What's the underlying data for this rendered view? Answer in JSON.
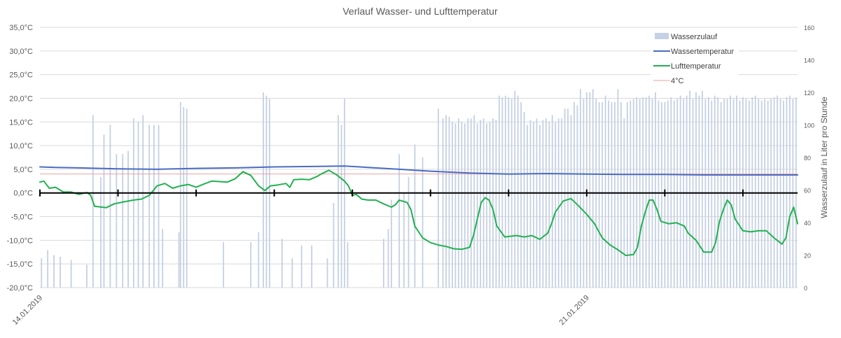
{
  "chart_data": {
    "type": "bar+line",
    "title": "Verlauf Wasser- und Lufttemperatur",
    "y_left": {
      "range": [
        -20,
        35
      ],
      "ticks": [
        -20,
        -15,
        -10,
        -5,
        0,
        5,
        10,
        15,
        20,
        25,
        30,
        35
      ],
      "tick_labels": [
        "-20,0°C",
        "-15,0°C",
        "-10,0°C",
        "-5,0°C",
        "0,0°C",
        "5,0°C",
        "10,0°C",
        "15,0°C",
        "20,0°C",
        "25,0°C",
        "30,0°C",
        "35,0°C"
      ]
    },
    "y_right": {
      "label": "Wasserzulauf in Liter pro Stunde",
      "range": [
        0,
        160
      ],
      "ticks": [
        0,
        20,
        40,
        60,
        80,
        100,
        120,
        140,
        160
      ],
      "tick_labels": [
        "0",
        "20",
        "40",
        "60",
        "80",
        "100",
        "120",
        "140",
        "160"
      ]
    },
    "x_axis": {
      "range_days": [
        0,
        9.7
      ],
      "tick_step_days": 1,
      "date_labels": [
        {
          "day": 0,
          "label": "14.01.2019"
        },
        {
          "day": 7,
          "label": "21.01.2019"
        }
      ]
    },
    "grid": true,
    "legend_position": "top-right",
    "legend": [
      {
        "key": "bars",
        "label": "Wasserzulauf",
        "color": "#c5d0e3"
      },
      {
        "key": "water",
        "label": "Wassertemperatur",
        "color": "#4a6cc2"
      },
      {
        "key": "air",
        "label": "Lufttemperatur",
        "color": "#21b14f"
      },
      {
        "key": "ref",
        "label": "4°C",
        "color": "#e8a3a0"
      }
    ],
    "series": {
      "bars": {
        "name": "Wasserzulauf",
        "axis": "right",
        "points": [
          [
            0.02,
            18
          ],
          [
            0.1,
            23
          ],
          [
            0.18,
            20
          ],
          [
            0.26,
            19
          ],
          [
            0.4,
            17
          ],
          [
            0.6,
            14
          ],
          [
            0.68,
            106
          ],
          [
            0.78,
            68
          ],
          [
            0.82,
            94
          ],
          [
            0.9,
            100
          ],
          [
            0.98,
            82
          ],
          [
            1.06,
            82
          ],
          [
            1.13,
            84
          ],
          [
            1.2,
            104
          ],
          [
            1.26,
            102
          ],
          [
            1.32,
            106
          ],
          [
            1.4,
            100
          ],
          [
            1.46,
            100
          ],
          [
            1.52,
            100
          ],
          [
            1.57,
            36
          ],
          [
            1.78,
            34
          ],
          [
            1.8,
            114
          ],
          [
            1.84,
            111
          ],
          [
            1.88,
            110
          ],
          [
            2.35,
            28
          ],
          [
            2.7,
            28
          ],
          [
            2.8,
            34
          ],
          [
            2.86,
            120
          ],
          [
            2.9,
            118
          ],
          [
            2.94,
            116
          ],
          [
            3.1,
            30
          ],
          [
            3.23,
            18
          ],
          [
            3.35,
            26
          ],
          [
            3.48,
            26
          ],
          [
            3.68,
            18
          ],
          [
            3.76,
            52
          ],
          [
            3.82,
            106
          ],
          [
            3.86,
            100
          ],
          [
            3.9,
            116
          ],
          [
            3.94,
            28
          ],
          [
            4.4,
            30
          ],
          [
            4.46,
            36
          ],
          [
            4.5,
            54
          ],
          [
            4.6,
            82
          ],
          [
            4.66,
            58
          ],
          [
            4.72,
            68
          ],
          [
            4.8,
            88
          ],
          [
            4.9,
            80
          ],
          [
            5.1,
            110
          ],
          [
            5.16,
            104
          ],
          [
            5.2,
            106
          ],
          [
            5.24,
            105
          ],
          [
            5.28,
            102
          ],
          [
            5.32,
            101
          ],
          [
            5.36,
            104
          ],
          [
            5.4,
            102
          ],
          [
            5.44,
            101
          ],
          [
            5.48,
            104
          ],
          [
            5.52,
            104
          ],
          [
            5.56,
            106
          ],
          [
            5.6,
            101
          ],
          [
            5.64,
            103
          ],
          [
            5.68,
            104
          ],
          [
            5.72,
            101
          ],
          [
            5.76,
            102
          ],
          [
            5.8,
            104
          ],
          [
            5.84,
            103
          ],
          [
            5.88,
            118
          ],
          [
            5.92,
            117
          ],
          [
            5.96,
            118
          ],
          [
            6.0,
            117
          ],
          [
            6.04,
            116
          ],
          [
            6.08,
            121
          ],
          [
            6.12,
            118
          ],
          [
            6.16,
            114
          ],
          [
            6.2,
            108
          ],
          [
            6.24,
            100
          ],
          [
            6.28,
            103
          ],
          [
            6.32,
            102
          ],
          [
            6.36,
            104
          ],
          [
            6.4,
            100
          ],
          [
            6.44,
            103
          ],
          [
            6.48,
            104
          ],
          [
            6.52,
            102
          ],
          [
            6.56,
            106
          ],
          [
            6.6,
            102
          ],
          [
            6.64,
            104
          ],
          [
            6.68,
            104
          ],
          [
            6.72,
            110
          ],
          [
            6.76,
            110
          ],
          [
            6.8,
            106
          ],
          [
            6.84,
            114
          ],
          [
            6.88,
            112
          ],
          [
            6.92,
            122
          ],
          [
            6.96,
            116
          ],
          [
            7.0,
            120
          ],
          [
            7.04,
            120
          ],
          [
            7.08,
            122
          ],
          [
            7.12,
            116
          ],
          [
            7.16,
            114
          ],
          [
            7.2,
            114
          ],
          [
            7.24,
            118
          ],
          [
            7.28,
            115
          ],
          [
            7.32,
            114
          ],
          [
            7.36,
            114
          ],
          [
            7.4,
            122
          ],
          [
            7.44,
            114
          ],
          [
            7.48,
            104
          ],
          [
            7.52,
            114
          ],
          [
            7.56,
            115
          ],
          [
            7.6,
            116
          ],
          [
            7.64,
            117
          ],
          [
            7.68,
            116
          ],
          [
            7.72,
            117
          ],
          [
            7.76,
            117
          ],
          [
            7.8,
            118
          ],
          [
            7.84,
            116
          ],
          [
            7.88,
            120
          ],
          [
            7.92,
            115
          ],
          [
            7.96,
            114
          ],
          [
            8.0,
            114
          ],
          [
            8.04,
            115
          ],
          [
            8.08,
            117
          ],
          [
            8.12,
            115
          ],
          [
            8.16,
            116
          ],
          [
            8.2,
            118
          ],
          [
            8.24,
            116
          ],
          [
            8.28,
            118
          ],
          [
            8.32,
            121
          ],
          [
            8.36,
            116
          ],
          [
            8.4,
            120
          ],
          [
            8.44,
            118
          ],
          [
            8.48,
            121
          ],
          [
            8.52,
            116
          ],
          [
            8.56,
            117
          ],
          [
            8.6,
            115
          ],
          [
            8.64,
            118
          ],
          [
            8.68,
            117
          ],
          [
            8.72,
            114
          ],
          [
            8.76,
            116
          ],
          [
            8.8,
            116
          ],
          [
            8.84,
            118
          ],
          [
            8.88,
            116
          ],
          [
            8.92,
            118
          ],
          [
            8.96,
            115
          ],
          [
            9.0,
            117
          ],
          [
            9.04,
            116
          ],
          [
            9.08,
            115
          ],
          [
            9.12,
            117
          ],
          [
            9.16,
            118
          ],
          [
            9.2,
            116
          ],
          [
            9.24,
            115
          ],
          [
            9.28,
            116
          ],
          [
            9.32,
            115
          ],
          [
            9.36,
            116
          ],
          [
            9.4,
            117
          ],
          [
            9.44,
            118
          ],
          [
            9.48,
            116
          ],
          [
            9.52,
            115
          ],
          [
            9.56,
            117
          ],
          [
            9.6,
            118
          ],
          [
            9.64,
            116
          ],
          [
            9.68,
            117
          ]
        ]
      },
      "water": {
        "name": "Wassertemperatur",
        "axis": "left",
        "points": [
          [
            0,
            5.5
          ],
          [
            0.2,
            5.4
          ],
          [
            0.5,
            5.3
          ],
          [
            1,
            5.1
          ],
          [
            1.5,
            5.0
          ],
          [
            2,
            5.2
          ],
          [
            2.5,
            5.3
          ],
          [
            3,
            5.5
          ],
          [
            3.5,
            5.6
          ],
          [
            3.9,
            5.7
          ],
          [
            4.2,
            5.4
          ],
          [
            4.6,
            5.0
          ],
          [
            5,
            4.6
          ],
          [
            5.5,
            4.2
          ],
          [
            6,
            4.0
          ],
          [
            6.5,
            4.1
          ],
          [
            7,
            4.0
          ],
          [
            7.5,
            3.9
          ],
          [
            8,
            3.9
          ],
          [
            8.5,
            3.8
          ],
          [
            9,
            3.8
          ],
          [
            9.7,
            3.8
          ]
        ]
      },
      "air": {
        "name": "Lufttemperatur",
        "axis": "left",
        "points": [
          [
            0,
            2.3
          ],
          [
            0.05,
            2.5
          ],
          [
            0.12,
            1.0
          ],
          [
            0.2,
            1.2
          ],
          [
            0.3,
            0.2
          ],
          [
            0.4,
            0.2
          ],
          [
            0.5,
            -0.3
          ],
          [
            0.6,
            0.1
          ],
          [
            0.65,
            -0.5
          ],
          [
            0.7,
            -2.8
          ],
          [
            0.85,
            -3.1
          ],
          [
            0.95,
            -2.3
          ],
          [
            1.1,
            -1.8
          ],
          [
            1.2,
            -1.5
          ],
          [
            1.3,
            -1.3
          ],
          [
            1.4,
            -0.5
          ],
          [
            1.5,
            1.5
          ],
          [
            1.6,
            2.0
          ],
          [
            1.7,
            1.0
          ],
          [
            1.8,
            1.5
          ],
          [
            1.9,
            1.8
          ],
          [
            2.0,
            1.2
          ],
          [
            2.1,
            1.9
          ],
          [
            2.2,
            2.5
          ],
          [
            2.4,
            2.3
          ],
          [
            2.5,
            3.0
          ],
          [
            2.6,
            4.5
          ],
          [
            2.7,
            3.7
          ],
          [
            2.8,
            1.5
          ],
          [
            2.88,
            0.5
          ],
          [
            2.95,
            1.5
          ],
          [
            3.05,
            1.7
          ],
          [
            3.15,
            2.0
          ],
          [
            3.2,
            1.2
          ],
          [
            3.25,
            2.8
          ],
          [
            3.35,
            2.9
          ],
          [
            3.45,
            2.8
          ],
          [
            3.55,
            3.5
          ],
          [
            3.6,
            4.0
          ],
          [
            3.7,
            4.8
          ],
          [
            3.8,
            3.8
          ],
          [
            3.9,
            2.5
          ],
          [
            3.95,
            1.5
          ],
          [
            4.0,
            -0.5
          ],
          [
            4.05,
            -0.3
          ],
          [
            4.12,
            -1.3
          ],
          [
            4.2,
            -1.5
          ],
          [
            4.3,
            -1.5
          ],
          [
            4.4,
            -2.3
          ],
          [
            4.5,
            -3.0
          ],
          [
            4.55,
            -2.5
          ],
          [
            4.6,
            -1.5
          ],
          [
            4.7,
            -2.0
          ],
          [
            4.75,
            -3.5
          ],
          [
            4.8,
            -7.0
          ],
          [
            4.9,
            -9.5
          ],
          [
            5.0,
            -10.5
          ],
          [
            5.1,
            -11.0
          ],
          [
            5.2,
            -11.3
          ],
          [
            5.3,
            -11.8
          ],
          [
            5.4,
            -11.9
          ],
          [
            5.5,
            -11.5
          ],
          [
            5.55,
            -9.0
          ],
          [
            5.6,
            -5.5
          ],
          [
            5.65,
            -2.0
          ],
          [
            5.7,
            -1.0
          ],
          [
            5.75,
            -1.5
          ],
          [
            5.8,
            -3.5
          ],
          [
            5.85,
            -7.0
          ],
          [
            5.95,
            -9.3
          ],
          [
            6.1,
            -9.0
          ],
          [
            6.2,
            -9.3
          ],
          [
            6.3,
            -9.0
          ],
          [
            6.4,
            -9.8
          ],
          [
            6.5,
            -8.5
          ],
          [
            6.55,
            -6.5
          ],
          [
            6.6,
            -4.0
          ],
          [
            6.7,
            -1.7
          ],
          [
            6.8,
            -1.2
          ],
          [
            6.9,
            -2.8
          ],
          [
            7.0,
            -4.5
          ],
          [
            7.1,
            -6.5
          ],
          [
            7.2,
            -9.5
          ],
          [
            7.3,
            -11.0
          ],
          [
            7.4,
            -12.0
          ],
          [
            7.5,
            -13.2
          ],
          [
            7.6,
            -13.0
          ],
          [
            7.65,
            -11.5
          ],
          [
            7.7,
            -7.0
          ],
          [
            7.75,
            -4.0
          ],
          [
            7.8,
            -1.5
          ],
          [
            7.85,
            -1.5
          ],
          [
            7.9,
            -3.5
          ],
          [
            7.95,
            -6.0
          ],
          [
            8.05,
            -6.5
          ],
          [
            8.15,
            -6.3
          ],
          [
            8.25,
            -7.0
          ],
          [
            8.3,
            -8.5
          ],
          [
            8.4,
            -10.0
          ],
          [
            8.5,
            -12.5
          ],
          [
            8.6,
            -12.5
          ],
          [
            8.65,
            -10.5
          ],
          [
            8.7,
            -6.0
          ],
          [
            8.75,
            -3.5
          ],
          [
            8.8,
            -1.5
          ],
          [
            8.85,
            -2.5
          ],
          [
            8.9,
            -5.5
          ],
          [
            9.0,
            -8.0
          ],
          [
            9.1,
            -8.2
          ],
          [
            9.2,
            -8.0
          ],
          [
            9.3,
            -8.0
          ],
          [
            9.4,
            -9.5
          ],
          [
            9.5,
            -10.8
          ],
          [
            9.55,
            -9.5
          ],
          [
            9.6,
            -5.0
          ],
          [
            9.65,
            -3.0
          ],
          [
            9.7,
            -6.5
          ]
        ]
      },
      "ref": {
        "name": "4°C",
        "axis": "left",
        "value": 4
      }
    }
  }
}
